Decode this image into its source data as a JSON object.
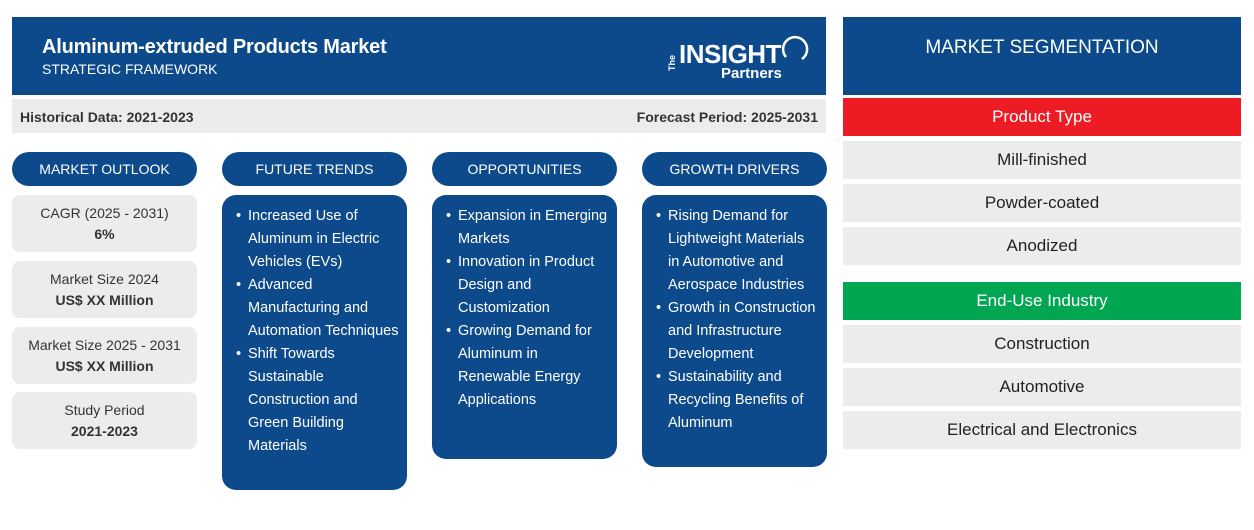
{
  "header": {
    "title": "Aluminum-extruded Products Market",
    "subtitle": "STRATEGIC FRAMEWORK",
    "logo": {
      "the": "The",
      "insight": "INSIGHT",
      "partners": "Partners"
    }
  },
  "periods": {
    "historical": "Historical Data: 2021-2023",
    "forecast": "Forecast Period: 2025-2031"
  },
  "columns": {
    "market_outlook": "MARKET OUTLOOK",
    "future_trends": "FUTURE TRENDS",
    "opportunities": "OPPORTUNITIES",
    "growth_drivers": "GROWTH DRIVERS"
  },
  "stats": [
    {
      "label": "CAGR (2025 - 2031)",
      "value": "6%"
    },
    {
      "label": "Market Size 2024",
      "value": "US$ XX Million"
    },
    {
      "label": "Market Size 2025 - 2031",
      "value": "US$ XX Million"
    },
    {
      "label": "Study Period",
      "value": "2021-2023"
    }
  ],
  "future_trends": [
    "Increased Use of Aluminum in Electric Vehicles (EVs)",
    "Advanced Manufacturing and Automation Techniques",
    "Shift Towards Sustainable Construction and Green Building Materials"
  ],
  "opportunities": [
    "Expansion in Emerging Markets",
    "Innovation in Product Design and Customization",
    "Growing Demand for Aluminum in Renewable Energy Applications"
  ],
  "growth_drivers": [
    "Rising Demand for Lightweight Materials in Automotive and Aerospace Industries",
    "Growth in Construction and Infrastructure Development",
    "Sustainability and Recycling Benefits of Aluminum"
  ],
  "segmentation": {
    "title": "MARKET SEGMENTATION",
    "product_type": {
      "label": "Product Type",
      "color": "#ed1c24",
      "items": [
        "Mill-finished",
        "Powder-coated",
        "Anodized"
      ]
    },
    "end_use": {
      "label": "End-Use Industry",
      "color": "#00a651",
      "items": [
        "Construction",
        "Automotive",
        "Electrical and Electronics"
      ]
    }
  },
  "colors": {
    "brand_blue": "#0d4a8c",
    "light_gray": "#ececec"
  }
}
